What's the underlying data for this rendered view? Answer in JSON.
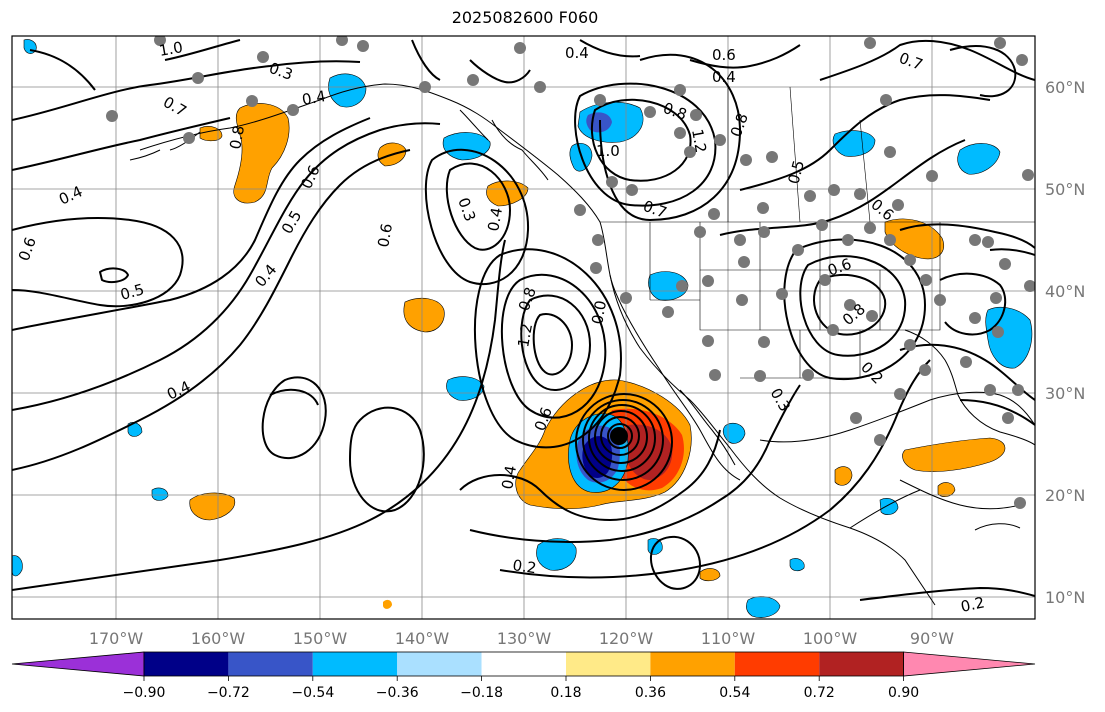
{
  "title": "2025082600 F060",
  "colors": {
    "contour": "#000000",
    "grid": "#888888",
    "station": "#777777",
    "tick_text": "#777777"
  },
  "axes": {
    "lon_labels": [
      "170°W",
      "160°W",
      "150°W",
      "140°W",
      "130°W",
      "120°W",
      "110°W",
      "100°W",
      "90°W"
    ],
    "lat_labels": [
      "60°N",
      "50°N",
      "40°N",
      "30°N",
      "20°N",
      "10°N"
    ]
  },
  "colorbar": {
    "ticks": [
      "−0.90",
      "−0.72",
      "−0.54",
      "−0.36",
      "−0.18",
      "0.18",
      "0.36",
      "0.54",
      "0.72",
      "0.90"
    ],
    "colors": [
      "#9b30d8",
      "#000088",
      "#3855c8",
      "#00bbff",
      "#aae0ff",
      "#ffffff",
      "#ffea88",
      "#ffa100",
      "#ff3c00",
      "#b12222",
      "#ff88b0"
    ]
  },
  "contour_labels": [
    {
      "text": "0.4"
    },
    {
      "text": "0.6"
    },
    {
      "text": "0.4"
    },
    {
      "text": "0.3"
    },
    {
      "text": "0.7"
    },
    {
      "text": "0.8"
    },
    {
      "text": "0.6"
    },
    {
      "text": "0.5"
    },
    {
      "text": "0.4"
    },
    {
      "text": "0.6"
    },
    {
      "text": "0.4"
    },
    {
      "text": "0.5"
    },
    {
      "text": "0.4"
    },
    {
      "text": "0.6"
    },
    {
      "text": "0.3"
    },
    {
      "text": "0.4"
    },
    {
      "text": "0.8"
    },
    {
      "text": "1.2"
    },
    {
      "text": "0.6"
    },
    {
      "text": "0.4"
    },
    {
      "text": "0.2"
    },
    {
      "text": "1.0"
    },
    {
      "text": "0.8"
    },
    {
      "text": "1.2"
    },
    {
      "text": "0.4"
    },
    {
      "text": "0.7"
    },
    {
      "text": "0.5"
    },
    {
      "text": "0.6"
    },
    {
      "text": "0.8"
    },
    {
      "text": "0.6"
    },
    {
      "text": "0.3"
    },
    {
      "text": "0.2"
    },
    {
      "text": "0.2"
    },
    {
      "text": "1.0"
    },
    {
      "text": "0.8"
    },
    {
      "text": "0.7"
    },
    {
      "text": "0.0"
    }
  ]
}
